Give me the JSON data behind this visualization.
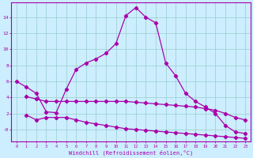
{
  "xlabel": "Windchill (Refroidissement éolien,°C)",
  "line_color": "#aa00aa",
  "bg_color": "#cceeff",
  "grid_color": "#99cccc",
  "x_ticks": [
    0,
    1,
    2,
    3,
    4,
    5,
    6,
    7,
    8,
    9,
    10,
    11,
    12,
    13,
    14,
    15,
    16,
    17,
    18,
    19,
    20,
    21,
    22,
    23
  ],
  "y_ticks": [
    0,
    2,
    4,
    6,
    8,
    10,
    12,
    14
  ],
  "y_tick_labels": [
    "-0",
    "2",
    "4",
    "6",
    "8",
    "10",
    "12",
    "14"
  ],
  "ylim": [
    -1.5,
    15.8
  ],
  "xlim": [
    -0.5,
    23.5
  ],
  "curve1_x": [
    0,
    1,
    2,
    3,
    4,
    5,
    6,
    7,
    8,
    9,
    10,
    11,
    12,
    13,
    14,
    15,
    16,
    17,
    18,
    19,
    20,
    21,
    22,
    23
  ],
  "curve1_y": [
    6.0,
    5.3,
    4.5,
    2.2,
    2.1,
    5.0,
    7.5,
    8.3,
    8.8,
    9.5,
    10.7,
    14.2,
    15.2,
    14.0,
    13.3,
    8.3,
    6.7,
    4.5,
    3.5,
    2.8,
    2.0,
    0.5,
    -0.3,
    -0.5
  ],
  "curve2_x": [
    1,
    2,
    3,
    4,
    5,
    6,
    7,
    8,
    9,
    10,
    11,
    12,
    13,
    14,
    15,
    16,
    17,
    18,
    19,
    20,
    21,
    22,
    23
  ],
  "curve2_y": [
    4.1,
    3.8,
    3.5,
    3.5,
    3.5,
    3.5,
    3.5,
    3.5,
    3.5,
    3.5,
    3.5,
    3.4,
    3.3,
    3.2,
    3.1,
    3.0,
    2.9,
    2.8,
    2.6,
    2.4,
    2.0,
    1.5,
    1.2
  ],
  "curve3_x": [
    1,
    2,
    3,
    4,
    5,
    6,
    7,
    8,
    9,
    10,
    11,
    12,
    13,
    14,
    15,
    16,
    17,
    18,
    19,
    20,
    21,
    22,
    23
  ],
  "curve3_y": [
    1.8,
    1.2,
    1.5,
    1.5,
    1.5,
    1.2,
    0.9,
    0.7,
    0.5,
    0.3,
    0.1,
    0.0,
    -0.1,
    -0.2,
    -0.3,
    -0.4,
    -0.5,
    -0.6,
    -0.7,
    -0.8,
    -0.9,
    -1.0,
    -1.1
  ],
  "marker": "D",
  "markersize": 2.2,
  "linewidth": 0.9
}
